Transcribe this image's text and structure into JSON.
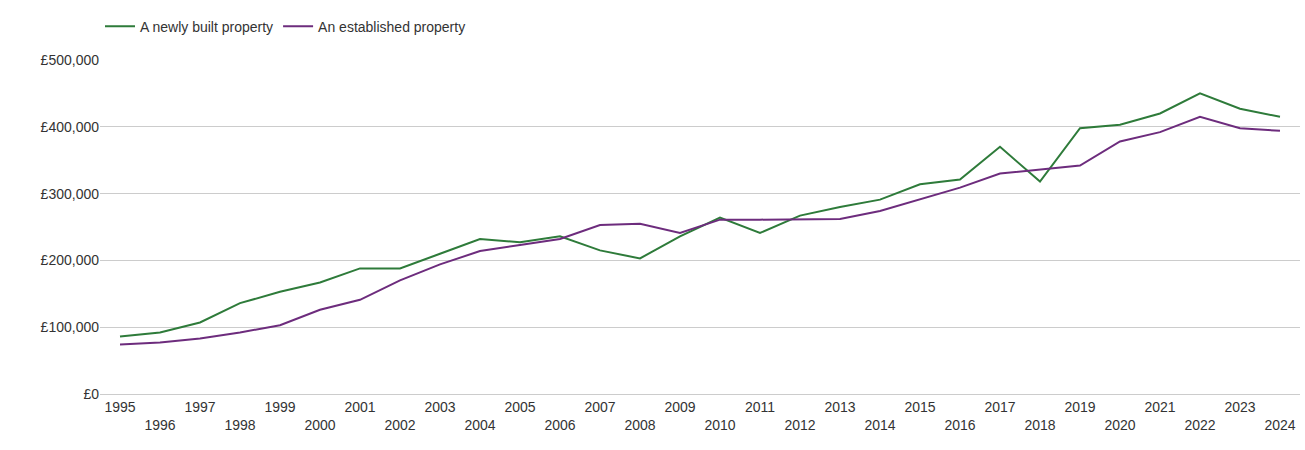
{
  "chart_data": {
    "type": "line",
    "x": [
      1995,
      1996,
      1997,
      1998,
      1999,
      2000,
      2001,
      2002,
      2003,
      2004,
      2005,
      2006,
      2007,
      2008,
      2009,
      2010,
      2011,
      2012,
      2013,
      2014,
      2015,
      2016,
      2017,
      2018,
      2019,
      2020,
      2021,
      2022,
      2023,
      2024
    ],
    "series": [
      {
        "name": "A newly built property",
        "color": "#2e7b3a",
        "values": [
          86000,
          92000,
          107000,
          136000,
          153000,
          167000,
          188000,
          188000,
          210000,
          232000,
          227000,
          236000,
          215000,
          203000,
          236000,
          264000,
          241000,
          267000,
          280000,
          291000,
          314000,
          321000,
          370000,
          318000,
          398000,
          403000,
          420000,
          450000,
          427000,
          415000
        ]
      },
      {
        "name": "An established property",
        "color": "#6d2c7d",
        "values": [
          74000,
          77000,
          83000,
          92000,
          103000,
          126000,
          141000,
          170000,
          194000,
          214000,
          223000,
          232000,
          253000,
          255000,
          241000,
          261000,
          261000,
          262000,
          262000,
          274000,
          292000,
          309000,
          330000,
          336000,
          342000,
          378000,
          392000,
          415000,
          398000,
          394000
        ]
      }
    ],
    "xlim": [
      1994.5,
      2024.5
    ],
    "xticks": [
      1995,
      1996,
      1997,
      1998,
      1999,
      2000,
      2001,
      2002,
      2003,
      2004,
      2005,
      2006,
      2007,
      2008,
      2009,
      2010,
      2011,
      2012,
      2013,
      2014,
      2015,
      2016,
      2017,
      2018,
      2019,
      2020,
      2021,
      2022,
      2023,
      2024
    ],
    "ylim": [
      0,
      500000
    ],
    "yticks": [
      {
        "value": 0,
        "label": "£0"
      },
      {
        "value": 100000,
        "label": "£100,000"
      },
      {
        "value": 200000,
        "label": "£200,000"
      },
      {
        "value": 300000,
        "label": "£300,000"
      },
      {
        "value": 400000,
        "label": "£400,000"
      },
      {
        "value": 500000,
        "label": "£500,000"
      }
    ],
    "grid": true,
    "legend": "top-left"
  }
}
